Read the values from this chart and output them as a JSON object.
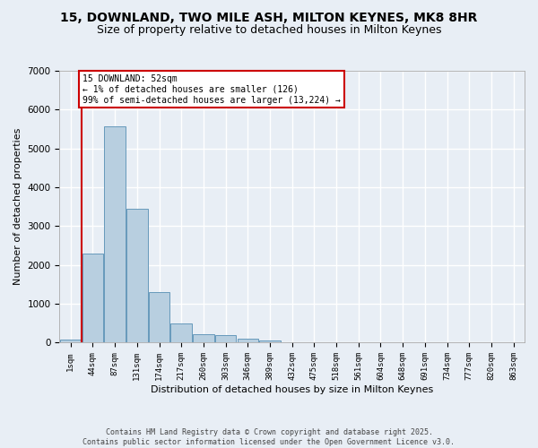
{
  "title": "15, DOWNLAND, TWO MILE ASH, MILTON KEYNES, MK8 8HR",
  "subtitle": "Size of property relative to detached houses in Milton Keynes",
  "xlabel": "Distribution of detached houses by size in Milton Keynes",
  "ylabel": "Number of detached properties",
  "categories": [
    "1sqm",
    "44sqm",
    "87sqm",
    "131sqm",
    "174sqm",
    "217sqm",
    "260sqm",
    "303sqm",
    "346sqm",
    "389sqm",
    "432sqm",
    "475sqm",
    "518sqm",
    "561sqm",
    "604sqm",
    "648sqm",
    "691sqm",
    "734sqm",
    "777sqm",
    "820sqm",
    "863sqm"
  ],
  "values": [
    75,
    2300,
    5580,
    3450,
    1310,
    500,
    220,
    195,
    100,
    50,
    5,
    0,
    0,
    0,
    0,
    0,
    0,
    0,
    0,
    0,
    0
  ],
  "bar_color": "#b8cfe0",
  "bar_edge_color": "#6699bb",
  "background_color": "#e8eef5",
  "grid_color": "#ffffff",
  "ylim": [
    0,
    7000
  ],
  "property_bin_index": 1,
  "property_line_color": "#cc0000",
  "annotation_text": "15 DOWNLAND: 52sqm\n← 1% of detached houses are smaller (126)\n99% of semi-detached houses are larger (13,224) →",
  "footer_text": "Contains HM Land Registry data © Crown copyright and database right 2025.\nContains public sector information licensed under the Open Government Licence v3.0.",
  "title_fontsize": 10,
  "subtitle_fontsize": 9,
  "tick_fontsize": 6.5,
  "ylabel_fontsize": 8,
  "xlabel_fontsize": 8,
  "annotation_fontsize": 7,
  "footer_fontsize": 6
}
